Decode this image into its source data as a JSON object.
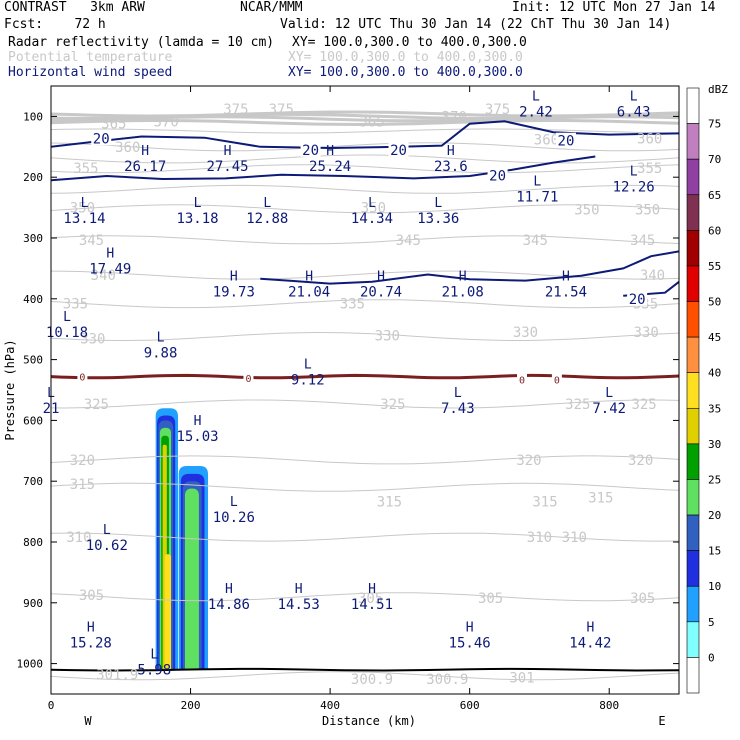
{
  "header": {
    "model": "CONTRAST   3km ARW",
    "org": "NCAR/MMM",
    "init": "Init: 12 UTC Mon 27 Jan 14",
    "fcst": "Fcst:    72 h",
    "valid": "Valid: 12 UTC Thu 30 Jan 14 (22 ChT Thu 30 Jan 14)",
    "fields": [
      {
        "name": "Radar reflectivity (lamda = 10 cm)",
        "xy": "XY= 100.0,300.0 to 400.0,300.0",
        "color": "#000000"
      },
      {
        "name": "Potential temperature",
        "xy": "XY= 100.0,300.0 to 400.0,300.0",
        "color": "#c8c8c8"
      },
      {
        "name": "Horizontal wind speed",
        "xy": "XY= 100.0,300.0 to 400.0,300.0",
        "color": "#0d1a78"
      }
    ]
  },
  "chart_data": {
    "type": "cross-section",
    "xlabel": "Distance (km)",
    "ylabel": "Pressure (hPa)",
    "xlim": [
      0,
      900
    ],
    "ylim": [
      1050,
      50
    ],
    "x_ticks": [
      "0",
      "200",
      "400",
      "600",
      "800"
    ],
    "x_tick_values": [
      0,
      200,
      400,
      600,
      800
    ],
    "y_ticks": [
      "100",
      "200",
      "300",
      "400",
      "500",
      "600",
      "700",
      "800",
      "900",
      "1000"
    ],
    "y_tick_values": [
      100,
      200,
      300,
      400,
      500,
      600,
      700,
      800,
      900,
      1000
    ],
    "west_label": "W",
    "east_label": "E",
    "colorbar": {
      "unit": "dBZ",
      "levels": [
        "75",
        "70",
        "65",
        "60",
        "55",
        "50",
        "45",
        "40",
        "35",
        "30",
        "25",
        "20",
        "15",
        "10",
        "5",
        "0"
      ],
      "colors": [
        "#ffffff",
        "#c080c0",
        "#9040a0",
        "#803050",
        "#a00000",
        "#e00000",
        "#ff5000",
        "#ff9040",
        "#ffe020",
        "#e0d000",
        "#00a000",
        "#60e060",
        "#3060c0",
        "#2030e0",
        "#20a0ff",
        "#80ffff",
        "#ffffff"
      ]
    },
    "theta_labels": [
      {
        "text": "370",
        "x": 165,
        "p": 108
      },
      {
        "text": "375",
        "x": 265,
        "p": 88
      },
      {
        "text": "375",
        "x": 330,
        "p": 88
      },
      {
        "text": "370",
        "x": 578,
        "p": 100
      },
      {
        "text": "375",
        "x": 640,
        "p": 88
      },
      {
        "text": "365",
        "x": 90,
        "p": 112
      },
      {
        "text": "360",
        "x": 110,
        "p": 150
      },
      {
        "text": "365",
        "x": 460,
        "p": 108
      },
      {
        "text": "360",
        "x": 710,
        "p": 138
      },
      {
        "text": "360",
        "x": 858,
        "p": 136
      },
      {
        "text": "355",
        "x": 50,
        "p": 185
      },
      {
        "text": "355",
        "x": 858,
        "p": 185
      },
      {
        "text": "350",
        "x": 45,
        "p": 250
      },
      {
        "text": "350",
        "x": 462,
        "p": 250
      },
      {
        "text": "350",
        "x": 768,
        "p": 253
      },
      {
        "text": "350",
        "x": 855,
        "p": 253
      },
      {
        "text": "345",
        "x": 58,
        "p": 303
      },
      {
        "text": "345",
        "x": 512,
        "p": 303
      },
      {
        "text": "345",
        "x": 694,
        "p": 303
      },
      {
        "text": "345",
        "x": 848,
        "p": 303
      },
      {
        "text": "340",
        "x": 75,
        "p": 361
      },
      {
        "text": "340",
        "x": 862,
        "p": 361
      },
      {
        "text": "335",
        "x": 35,
        "p": 408
      },
      {
        "text": "335",
        "x": 432,
        "p": 408
      },
      {
        "text": "335",
        "x": 852,
        "p": 408
      },
      {
        "text": "330",
        "x": 60,
        "p": 465
      },
      {
        "text": "330",
        "x": 482,
        "p": 460
      },
      {
        "text": "330",
        "x": 680,
        "p": 455
      },
      {
        "text": "330",
        "x": 853,
        "p": 455
      },
      {
        "text": "325",
        "x": 65,
        "p": 573
      },
      {
        "text": "325",
        "x": 490,
        "p": 573
      },
      {
        "text": "325",
        "x": 755,
        "p": 573
      },
      {
        "text": "325",
        "x": 850,
        "p": 573
      },
      {
        "text": "320",
        "x": 45,
        "p": 665
      },
      {
        "text": "320",
        "x": 685,
        "p": 665
      },
      {
        "text": "320",
        "x": 845,
        "p": 665
      },
      {
        "text": "315",
        "x": 45,
        "p": 705
      },
      {
        "text": "315",
        "x": 485,
        "p": 733
      },
      {
        "text": "315",
        "x": 708,
        "p": 733
      },
      {
        "text": "315",
        "x": 788,
        "p": 727
      },
      {
        "text": "310",
        "x": 40,
        "p": 792
      },
      {
        "text": "310",
        "x": 700,
        "p": 792
      },
      {
        "text": "310",
        "x": 750,
        "p": 792
      },
      {
        "text": "305",
        "x": 58,
        "p": 887
      },
      {
        "text": "305",
        "x": 458,
        "p": 892
      },
      {
        "text": "305",
        "x": 630,
        "p": 892
      },
      {
        "text": "305",
        "x": 848,
        "p": 892
      },
      {
        "text": "301.9",
        "x": 95,
        "p": 1018
      },
      {
        "text": "300.9",
        "x": 460,
        "p": 1025
      },
      {
        "text": "300.9",
        "x": 568,
        "p": 1025
      },
      {
        "text": "301",
        "x": 675,
        "p": 1023
      }
    ],
    "hl_labels": [
      {
        "letter": "L",
        "value": "2.42",
        "x": 695,
        "p": 87
      },
      {
        "letter": "L",
        "value": "6.43",
        "x": 835,
        "p": 87
      },
      {
        "letter": "H",
        "value": "26.17",
        "x": 135,
        "p": 177
      },
      {
        "letter": "H",
        "value": "27.45",
        "x": 253,
        "p": 177
      },
      {
        "letter": "H",
        "value": "25.24",
        "x": 400,
        "p": 177
      },
      {
        "letter": "H",
        "value": "23.6",
        "x": 573,
        "p": 177
      },
      {
        "letter": "L",
        "value": "11.71",
        "x": 697,
        "p": 227
      },
      {
        "letter": "L",
        "value": "12.26",
        "x": 835,
        "p": 210
      },
      {
        "letter": "L",
        "value": "13.14",
        "x": 48,
        "p": 262
      },
      {
        "letter": "L",
        "value": "13.18",
        "x": 210,
        "p": 262
      },
      {
        "letter": "L",
        "value": "12.88",
        "x": 310,
        "p": 262
      },
      {
        "letter": "L",
        "value": "14.34",
        "x": 460,
        "p": 262
      },
      {
        "letter": "L",
        "value": "13.36",
        "x": 555,
        "p": 262
      },
      {
        "letter": "H",
        "value": "17.49",
        "x": 85,
        "p": 345
      },
      {
        "letter": "H",
        "value": "19.73",
        "x": 262,
        "p": 383
      },
      {
        "letter": "H",
        "value": "21.04",
        "x": 370,
        "p": 383
      },
      {
        "letter": "H",
        "value": "20.74",
        "x": 473,
        "p": 383
      },
      {
        "letter": "H",
        "value": "21.08",
        "x": 590,
        "p": 383
      },
      {
        "letter": "H",
        "value": "21.54",
        "x": 738,
        "p": 383
      },
      {
        "letter": "L",
        "value": "10.18",
        "x": 23,
        "p": 450
      },
      {
        "letter": "L",
        "value": "9.88",
        "x": 157,
        "p": 483
      },
      {
        "letter": "L",
        "value": "9.12",
        "x": 368,
        "p": 528
      },
      {
        "letter": "L",
        "value": "7.43",
        "x": 583,
        "p": 575
      },
      {
        "letter": "L",
        "value": "7.42",
        "x": 800,
        "p": 575
      },
      {
        "letter": "L",
        "value": "21",
        "x": 0,
        "p": 575
      },
      {
        "letter": "H",
        "value": "15.03",
        "x": 210,
        "p": 621
      },
      {
        "letter": "L",
        "value": "10.26",
        "x": 262,
        "p": 754
      },
      {
        "letter": "L",
        "value": "10.62",
        "x": 80,
        "p": 800
      },
      {
        "letter": "H",
        "value": "14.86",
        "x": 255,
        "p": 897
      },
      {
        "letter": "H",
        "value": "14.53",
        "x": 355,
        "p": 897
      },
      {
        "letter": "H",
        "value": "14.51",
        "x": 460,
        "p": 897
      },
      {
        "letter": "H",
        "value": "15.28",
        "x": 57,
        "p": 960
      },
      {
        "letter": "H",
        "value": "15.46",
        "x": 600,
        "p": 960
      },
      {
        "letter": "H",
        "value": "14.42",
        "x": 773,
        "p": 960
      },
      {
        "letter": "L",
        "value": "5.98",
        "x": 148,
        "p": 1005
      }
    ],
    "wind_contour_labels": [
      {
        "text": "20",
        "x": 72,
        "p": 136
      },
      {
        "text": "20",
        "x": 372,
        "p": 155
      },
      {
        "text": "20",
        "x": 498,
        "p": 155
      },
      {
        "text": "20",
        "x": 738,
        "p": 140
      },
      {
        "text": "20",
        "x": 640,
        "p": 197
      },
      {
        "text": "20",
        "x": 840,
        "p": 400
      }
    ],
    "zero_contour_labels": [
      {
        "text": "0",
        "x": 45,
        "p": 528
      },
      {
        "text": "0",
        "x": 283,
        "p": 530
      },
      {
        "text": "0",
        "x": 675,
        "p": 533
      },
      {
        "text": "0",
        "x": 725,
        "p": 533
      }
    ],
    "reflectivity_columns": [
      {
        "x0": 150,
        "x1": 182,
        "top": 580,
        "dbz": 5
      },
      {
        "x0": 152,
        "x1": 178,
        "top": 592,
        "dbz": 10
      },
      {
        "x0": 154,
        "x1": 175,
        "top": 600,
        "dbz": 15
      },
      {
        "x0": 156,
        "x1": 172,
        "top": 612,
        "dbz": 20
      },
      {
        "x0": 158,
        "x1": 169,
        "top": 625,
        "dbz": 25
      },
      {
        "x0": 160,
        "x1": 166,
        "top": 640,
        "dbz": 30
      },
      {
        "x0": 163,
        "x1": 172,
        "top": 820,
        "dbz": 35
      },
      {
        "x0": 183,
        "x1": 225,
        "top": 675,
        "dbz": 5
      },
      {
        "x0": 186,
        "x1": 220,
        "top": 688,
        "dbz": 10
      },
      {
        "x0": 189,
        "x1": 216,
        "top": 700,
        "dbz": 15
      },
      {
        "x0": 192,
        "x1": 212,
        "top": 712,
        "dbz": 20
      }
    ]
  }
}
